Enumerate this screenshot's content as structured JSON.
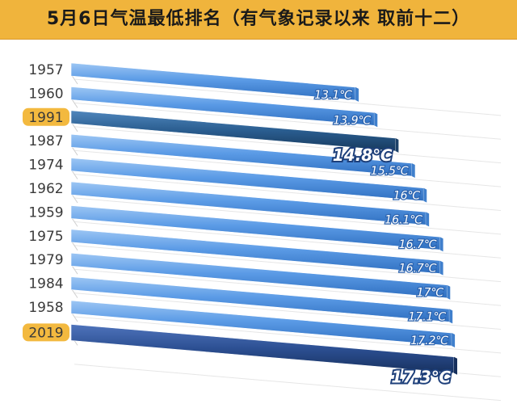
{
  "title": "5月6日气温最低排名（有气象记录以来 取前十二）",
  "colors": {
    "banner": "#f0b43c",
    "bar": "#5b9be6",
    "bar_highlight": "#2a5d8f",
    "bar_latest": "#2c4f92",
    "year_highlight_bg": "#f3b93f"
  },
  "chart_data": {
    "type": "bar",
    "orientation": "horizontal",
    "style": "3d-perspective",
    "categories": [
      "1957",
      "1960",
      "1991",
      "1987",
      "1974",
      "1962",
      "1959",
      "1975",
      "1979",
      "1984",
      "1958",
      "2019"
    ],
    "values": [
      13.1,
      13.9,
      14.8,
      15.5,
      16,
      16.1,
      16.7,
      16.7,
      17,
      17.1,
      17.2,
      17.3
    ],
    "value_labels": [
      "13.1℃",
      "13.9℃",
      "14.8℃",
      "15.5℃",
      "16℃",
      "16.1℃",
      "16.7℃",
      "16.7℃",
      "17℃",
      "17.1℃",
      "17.2℃",
      "17.3℃"
    ],
    "highlighted_categories": [
      "1991",
      "2019"
    ],
    "unit": "℃",
    "grid": true,
    "legend": "none"
  }
}
